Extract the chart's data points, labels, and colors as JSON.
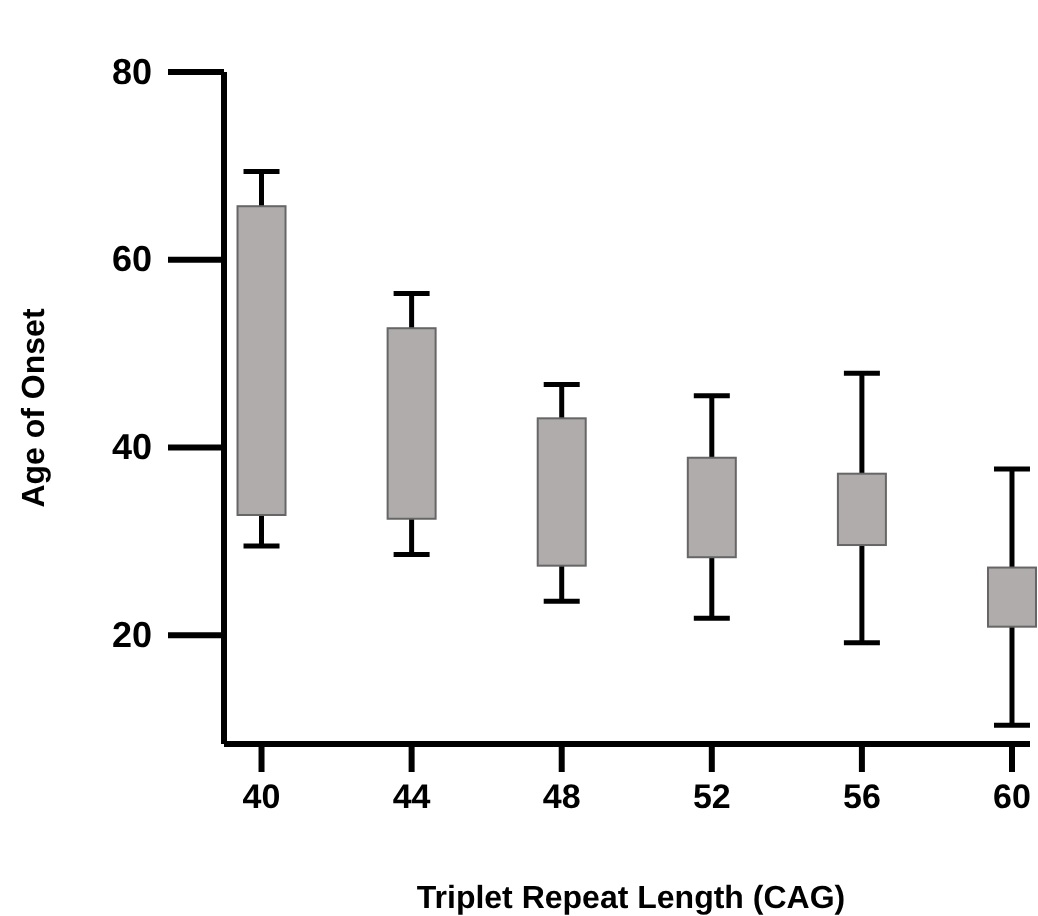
{
  "chart_data": {
    "type": "box",
    "xlabel": "Triplet Repeat Length (CAG)",
    "ylabel": "Age of Onset",
    "categories": [
      "40",
      "44",
      "48",
      "52",
      "56",
      "60"
    ],
    "color": "#b0acac",
    "boxes": [
      {
        "low": 29.5,
        "q1": 32.8,
        "q3": 65.7,
        "high": 69.4
      },
      {
        "low": 28.6,
        "q1": 32.4,
        "q3": 52.7,
        "high": 56.4
      },
      {
        "low": 23.6,
        "q1": 27.4,
        "q3": 43.1,
        "high": 46.7
      },
      {
        "low": 21.8,
        "q1": 28.3,
        "q3": 38.9,
        "high": 45.5
      },
      {
        "low": 19.2,
        "q1": 29.6,
        "q3": 37.2,
        "high": 47.9
      },
      {
        "low": 10.4,
        "q1": 20.9,
        "q3": 27.2,
        "high": 37.7
      }
    ],
    "ylim": [
      8.4,
      80
    ],
    "yticks": [
      20,
      40,
      60,
      80
    ],
    "grid": false
  }
}
